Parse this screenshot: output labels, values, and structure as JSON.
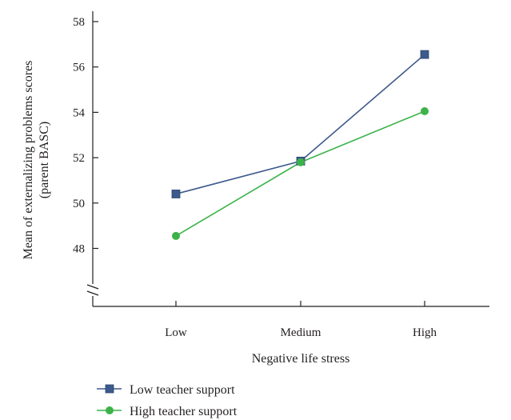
{
  "chart_data": {
    "type": "line",
    "categories": [
      "Low",
      "Medium",
      "High"
    ],
    "xlabel": "Negative life stress",
    "ylabel": [
      "Mean of externalizing problems scores",
      "(parent BASC)"
    ],
    "ylim": [
      46,
      58
    ],
    "yticks": [
      48,
      50,
      52,
      54,
      56,
      58
    ],
    "y_axis_break": true,
    "grid": false,
    "legend_position": "bottom-left",
    "series": [
      {
        "name": "Low teacher support",
        "marker": "square",
        "color": "#3d5a8c",
        "values": [
          50.4,
          51.85,
          56.55
        ]
      },
      {
        "name": "High teacher support",
        "marker": "circle",
        "color": "#3cb34a",
        "values": [
          48.55,
          51.8,
          54.05
        ]
      }
    ]
  }
}
